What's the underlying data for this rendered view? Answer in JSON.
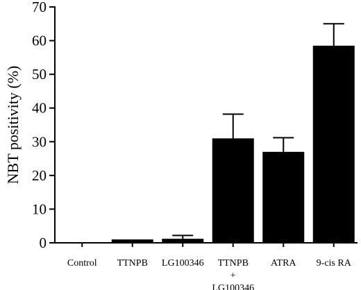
{
  "chart_data": {
    "type": "bar",
    "title": "",
    "xlabel": "",
    "ylabel": "NBT positivity (%)",
    "ylim": [
      0,
      70
    ],
    "yticks": [
      0,
      10,
      20,
      30,
      40,
      50,
      60,
      70
    ],
    "grid": false,
    "legend": "none",
    "bar_color": "#000000",
    "categories": [
      [
        "Control"
      ],
      [
        "TTNPB"
      ],
      [
        "LG100346"
      ],
      [
        "TTNPB",
        "+",
        "LG100346"
      ],
      [
        "ATRA"
      ],
      [
        "9-cis RA"
      ]
    ],
    "values": [
      0,
      1.0,
      1.2,
      31,
      27,
      58.5
    ],
    "error": [
      0,
      0,
      1,
      7.2,
      4.2,
      6.5
    ]
  }
}
